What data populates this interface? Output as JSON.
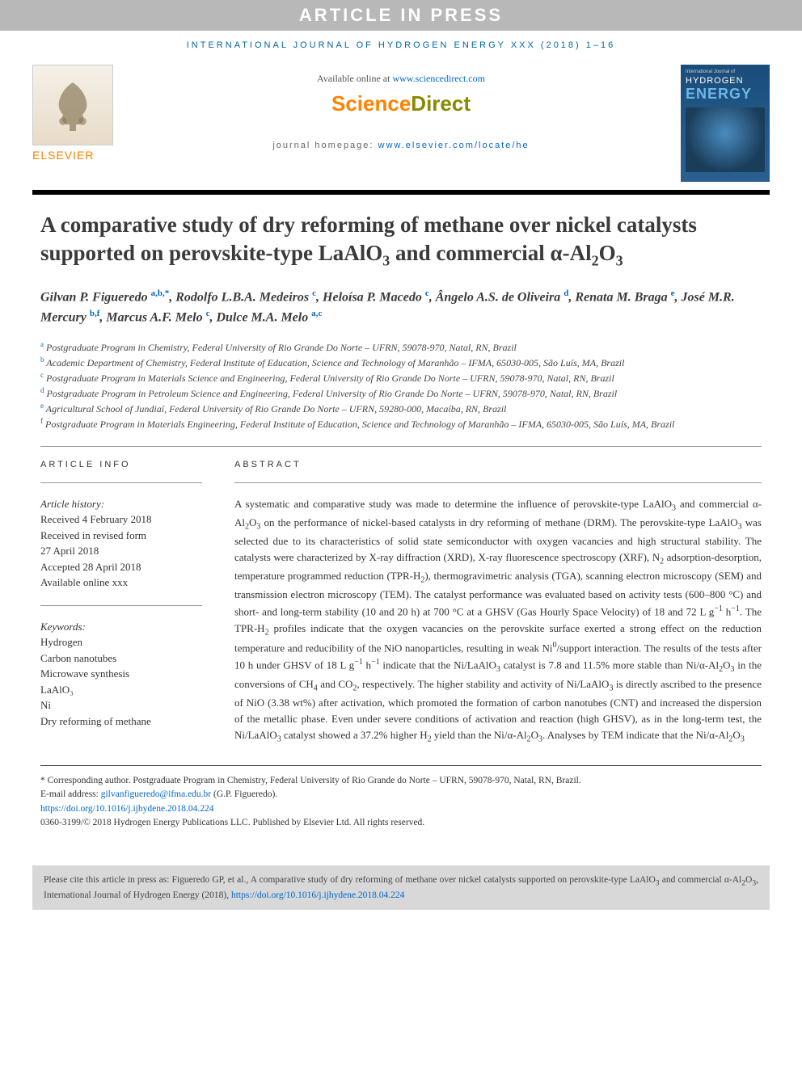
{
  "banner": "ARTICLE IN PRESS",
  "journal_ref": "INTERNATIONAL JOURNAL OF HYDROGEN ENERGY XXX (2018) 1–16",
  "header": {
    "available_prefix": "Available online at ",
    "available_link": "www.sciencedirect.com",
    "sd_science": "Science",
    "sd_direct": "Direct",
    "homepage_prefix": "journal homepage: ",
    "homepage_link": "www.elsevier.com/locate/he",
    "elsevier": "ELSEVIER"
  },
  "cover": {
    "top": "International Journal of",
    "hydrogen": "HYDROGEN",
    "energy": "ENERGY"
  },
  "title_html": "A comparative study of dry reforming of methane over nickel catalysts supported on perovskite-type LaAlO<sub>3</sub> and commercial α-Al<sub>2</sub>O<sub>3</sub>",
  "authors_html": "Gilvan P. Figueredo <sup>a,b,*</sup>, Rodolfo L.B.A. Medeiros <sup>c</sup>, Heloísa P. Macedo <sup>c</sup>, Ângelo A.S. de Oliveira <sup>d</sup>, Renata M. Braga <sup>e</sup>, José M.R. Mercury <sup>b,f</sup>, Marcus A.F. Melo <sup>c</sup>, Dulce M.A. Melo <sup>a,c</sup>",
  "affiliations": [
    {
      "sup": "a",
      "text": "Postgraduate Program in Chemistry, Federal University of Rio Grande Do Norte – UFRN, 59078-970, Natal, RN, Brazil"
    },
    {
      "sup": "b",
      "text": "Academic Department of Chemistry, Federal Institute of Education, Science and Technology of Maranhão – IFMA, 65030-005, São Luís, MA, Brazil"
    },
    {
      "sup": "c",
      "text": "Postgraduate Program in Materials Science and Engineering, Federal University of Rio Grande Do Norte – UFRN, 59078-970, Natal, RN, Brazil"
    },
    {
      "sup": "d",
      "text": "Postgraduate Program in Petroleum Science and Engineering, Federal University of Rio Grande Do Norte – UFRN, 59078-970, Natal, RN, Brazil"
    },
    {
      "sup": "e",
      "text": "Agricultural School of Jundiaí, Federal University of Rio Grande Do Norte – UFRN, 59280-000, Macaíba, RN, Brazil"
    },
    {
      "sup": "f",
      "text": "Postgraduate Program in Materials Engineering, Federal Institute of Education, Science and Technology of Maranhão – IFMA, 65030-005, São Luís, MA, Brazil"
    }
  ],
  "info_head": "ARTICLE INFO",
  "abstract_head": "ABSTRACT",
  "history_label": "Article history:",
  "history": [
    "Received 4 February 2018",
    "Received in revised form",
    "27 April 2018",
    "Accepted 28 April 2018",
    "Available online xxx"
  ],
  "keywords_label": "Keywords:",
  "keywords": [
    "Hydrogen",
    "Carbon nanotubes",
    "Microwave synthesis",
    "LaAlO₃",
    "Ni",
    "Dry reforming of methane"
  ],
  "abstract_html": "A systematic and comparative study was made to determine the influence of perovskite-type LaAlO<sub>3</sub> and commercial α-Al<sub>2</sub>O<sub>3</sub> on the performance of nickel-based catalysts in dry reforming of methane (DRM). The perovskite-type LaAlO<sub>3</sub> was selected due to its characteristics of solid state semiconductor with oxygen vacancies and high structural stability. The catalysts were characterized by X-ray diffraction (XRD), X-ray fluorescence spectroscopy (XRF), N<sub>2</sub> adsorption-desorption, temperature programmed reduction (TPR-H<sub>2</sub>), thermogravimetric analysis (TGA), scanning electron microscopy (SEM) and transmission electron microscopy (TEM). The catalyst performance was evaluated based on activity tests (600–800 °C) and short- and long-term stability (10 and 20 h) at 700 °C at a GHSV (Gas Hourly Space Velocity) of 18 and 72 L g<sup>−1</sup> h<sup>−1</sup>. The TPR-H<sub>2</sub> profiles indicate that the oxygen vacancies on the perovskite surface exerted a strong effect on the reduction temperature and reducibility of the NiO nanoparticles, resulting in weak Ni<sup>0</sup>/support interaction. The results of the tests after 10 h under GHSV of 18 L g<sup>−1</sup> h<sup>−1</sup> indicate that the Ni/LaAlO<sub>3</sub> catalyst is 7.8 and 11.5% more stable than Ni/α-Al<sub>2</sub>O<sub>3</sub> in the conversions of CH<sub>4</sub> and CO<sub>2</sub>, respectively. The higher stability and activity of Ni/LaAlO<sub>3</sub> is directly ascribed to the presence of NiO (3.38 wt%) after activation, which promoted the formation of carbon nanotubes (CNT) and increased the dispersion of the metallic phase. Even under severe conditions of activation and reaction (high GHSV), as in the long-term test, the Ni/LaAlO<sub>3</sub> catalyst showed a 37.2% higher H<sub>2</sub> yield than the Ni/α-Al<sub>2</sub>O<sub>3</sub>. Analyses by TEM indicate that the Ni/α-Al<sub>2</sub>O<sub>3</sub>",
  "footer": {
    "corresponding": "* Corresponding author. Postgraduate Program in Chemistry, Federal University of Rio Grande do Norte – UFRN, 59078-970, Natal, RN, Brazil.",
    "email_label": "E-mail address: ",
    "email": "gilvanfigueredo@ifma.edu.br",
    "email_suffix": " (G.P. Figueredo).",
    "doi": "https://doi.org/10.1016/j.ijhydene.2018.04.224",
    "copyright": "0360-3199/© 2018 Hydrogen Energy Publications LLC. Published by Elsevier Ltd. All rights reserved."
  },
  "cite_html": "Please cite this article in press as: Figueredo GP, et al., A comparative study of dry reforming of methane over nickel catalysts supported on perovskite-type LaAlO<sub>3</sub> and commercial α-Al<sub>2</sub>O<sub>3</sub>, International Journal of Hydrogen Energy (2018), <a href='#'>https://doi.org/10.1016/j.ijhydene.2018.04.224</a>"
}
